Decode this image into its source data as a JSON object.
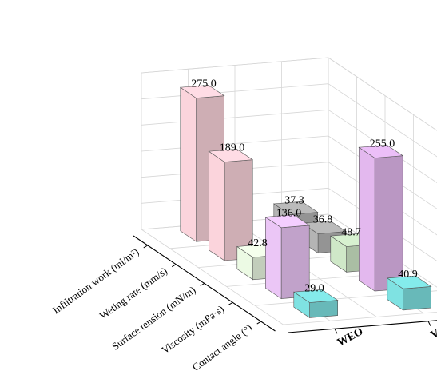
{
  "chart_data": {
    "type": "bar",
    "categories": [
      "Infiltration work (ml/m²)",
      "Weting rate (mm/s)",
      "Surface tension (mN/m)",
      "Viscosity (mPa·s)",
      "Contact angle (°)"
    ],
    "series": [
      {
        "name": "VO",
        "values": [
          37.3,
          36.8,
          48.7,
          255.0,
          40.9
        ],
        "labels": [
          "37.3",
          "36.8",
          "48.7",
          "255.0",
          "40.9"
        ],
        "colors": [
          "#b4b4b4",
          "#b4b4b4",
          "#cfe8c8",
          "#e3b8ee",
          "#7fe2e2"
        ]
      },
      {
        "name": "WEO",
        "values": [
          275.0,
          189.0,
          42.8,
          136.0,
          29.0
        ],
        "labels": [
          "275.0",
          "189.0",
          "42.8",
          "136.0",
          "29.0"
        ],
        "colors": [
          "#fbd4dc",
          "#fbd4dc",
          "#ecfae4",
          "#ebc6f6",
          "#7fe2e2"
        ]
      }
    ],
    "zlim": [
      0,
      300
    ],
    "zticks": [
      "0",
      "50",
      "100",
      "150",
      "200",
      "250",
      "300"
    ],
    "grid": true
  }
}
